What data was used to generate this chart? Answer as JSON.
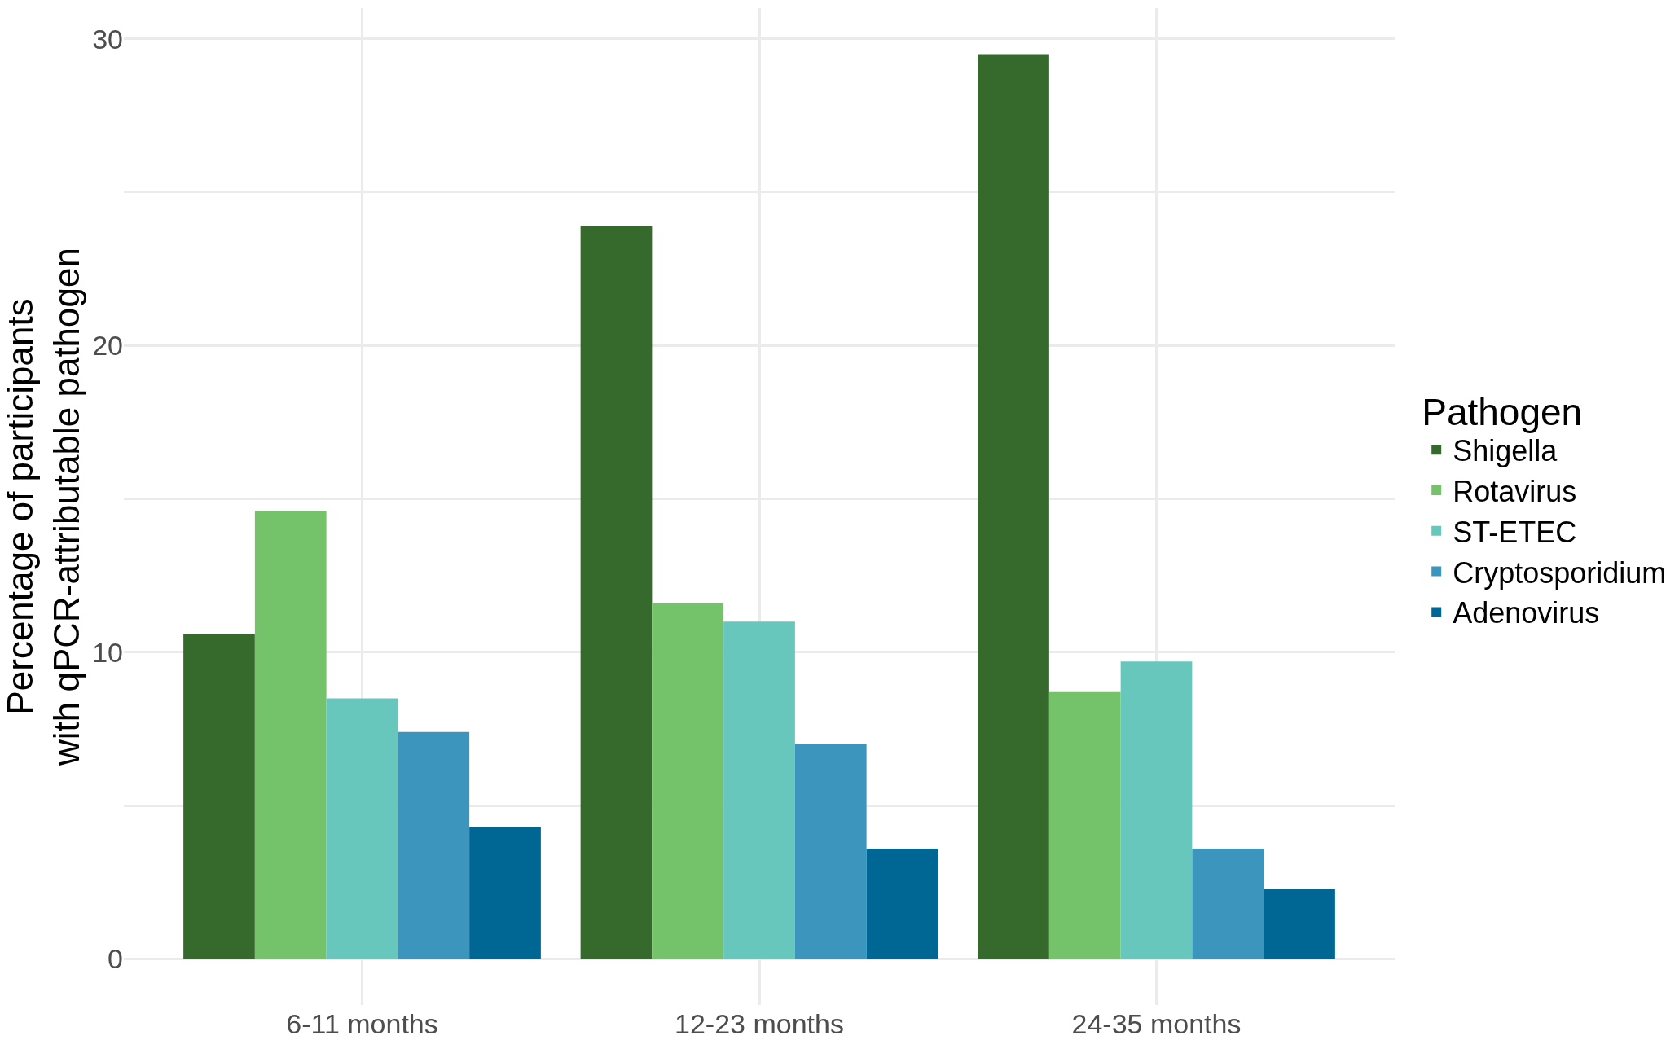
{
  "chart_data": {
    "type": "bar",
    "ylabel": "Percentage of participants\nwith qPCR-attributable pathogen",
    "legend_title": "Pathogen",
    "categories": [
      "6-11 months",
      "12-23 months",
      "24-35 months"
    ],
    "series": [
      {
        "name": "Shigella",
        "color": "#356a2c",
        "values": [
          10.6,
          23.9,
          29.5
        ]
      },
      {
        "name": "Rotavirus",
        "color": "#74c36a",
        "values": [
          14.6,
          11.6,
          8.7
        ]
      },
      {
        "name": "ST-ETEC",
        "color": "#67c7bd",
        "values": [
          8.5,
          11.0,
          9.7
        ]
      },
      {
        "name": "Cryptosporidium",
        "color": "#3b95bd",
        "values": [
          7.4,
          7.0,
          3.6
        ]
      },
      {
        "name": "Adenovirus",
        "color": "#006694",
        "values": [
          4.3,
          3.6,
          2.3
        ]
      }
    ],
    "ylim": [
      -1.5,
      31
    ],
    "yticks": [
      0,
      {
        "value": 5,
        "label": null
      },
      10,
      {
        "value": 15,
        "label": null
      },
      20,
      {
        "value": 25,
        "label": null
      },
      30
    ],
    "grid": true,
    "legend": "right"
  }
}
